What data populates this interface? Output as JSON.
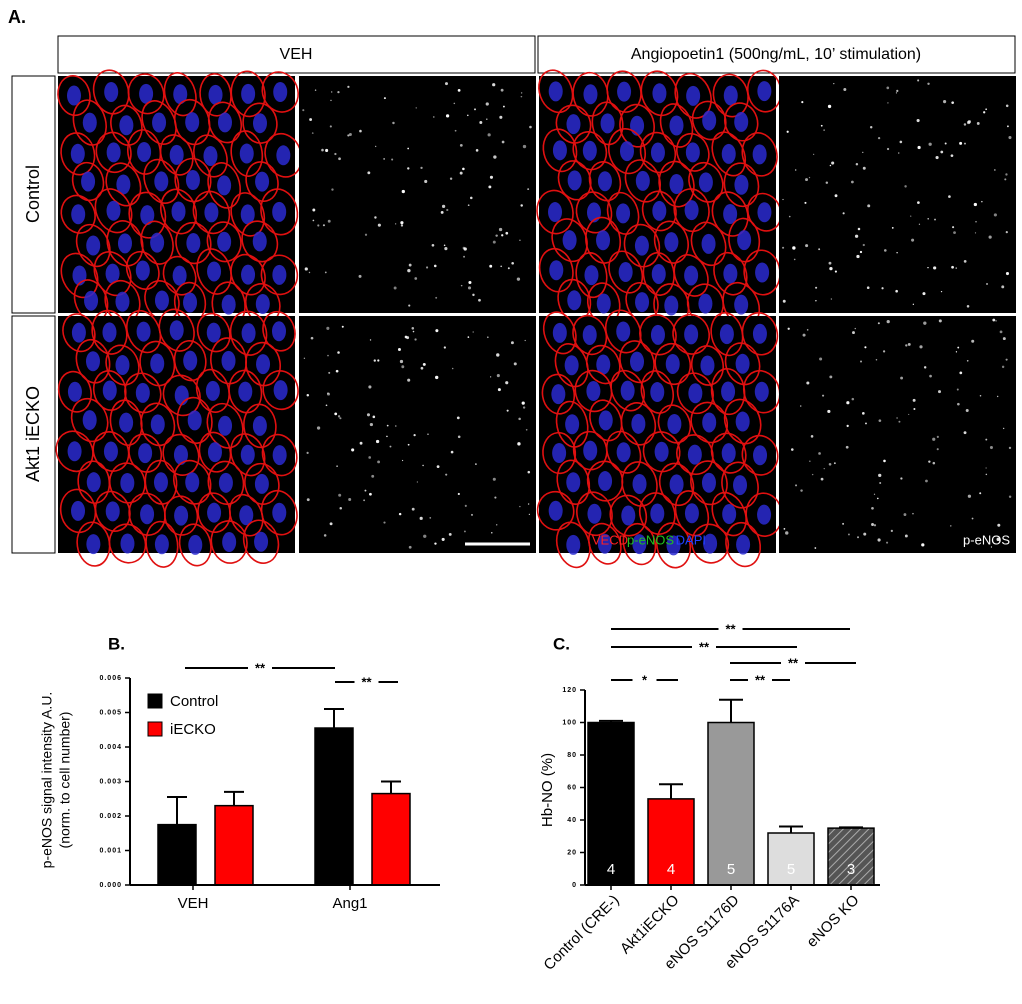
{
  "panel_a": {
    "label": "A.",
    "columns": [
      "VEH",
      "Angiopoetin1 (500ng/mL, 10’ stimulation)"
    ],
    "rows": [
      "Control",
      "Akt1 iECKO"
    ],
    "channel_labels": [
      "VECD",
      "p-eNOS",
      "DAPI"
    ],
    "gray_label": "p-eNOS"
  },
  "chart_data": [
    {
      "type": "bar",
      "panel_label": "B.",
      "ylabel": [
        "p-eNOS signal intensity A.U.",
        "(norm. to cell number)"
      ],
      "categories": [
        "VEH",
        "Ang1"
      ],
      "series": [
        {
          "name": "Control",
          "color": "#000000",
          "values": [
            0.00175,
            0.00455
          ],
          "errors": [
            0.0008,
            0.00055
          ]
        },
        {
          "name": "iECKO",
          "color": "#ff0000",
          "values": [
            0.0023,
            0.00265
          ],
          "errors": [
            0.0004,
            0.00035
          ]
        }
      ],
      "ylim": [
        0,
        0.006
      ],
      "yticks": [
        {
          "value": 0,
          "label": "0.000"
        },
        {
          "value": 0.001,
          "label": "0.001"
        },
        {
          "value": 0.002,
          "label": "0.002"
        },
        {
          "value": 0.003,
          "label": "0.003"
        },
        {
          "value": 0.004,
          "label": "0.004"
        },
        {
          "value": 0.005,
          "label": "0.005"
        },
        {
          "value": 0.006,
          "label": "0.006"
        }
      ],
      "legend": "upper left",
      "annotations": [
        "**",
        "**"
      ]
    },
    {
      "type": "bar",
      "panel_label": "C.",
      "ylabel": "Hb-NO (%)",
      "categories": [
        "Control (CRE-)",
        "Akt1iECKO",
        "eNOS  S1176D",
        "eNOS S1176A",
        "eNOS KO"
      ],
      "values": [
        100,
        53,
        100,
        32,
        35
      ],
      "errors": [
        1,
        9,
        14,
        4,
        0.5
      ],
      "colors": [
        "#000000",
        "#ff0000",
        "#999999",
        "#dddddd",
        "#555555"
      ],
      "hatch": [
        false,
        false,
        false,
        false,
        true
      ],
      "counts": [
        4,
        4,
        5,
        5,
        3
      ],
      "ylim": [
        0,
        120
      ],
      "yticks": [
        0,
        20,
        40,
        60,
        80,
        100,
        120
      ],
      "annotations": [
        "**",
        "**",
        "**",
        "*",
        "**"
      ]
    }
  ]
}
